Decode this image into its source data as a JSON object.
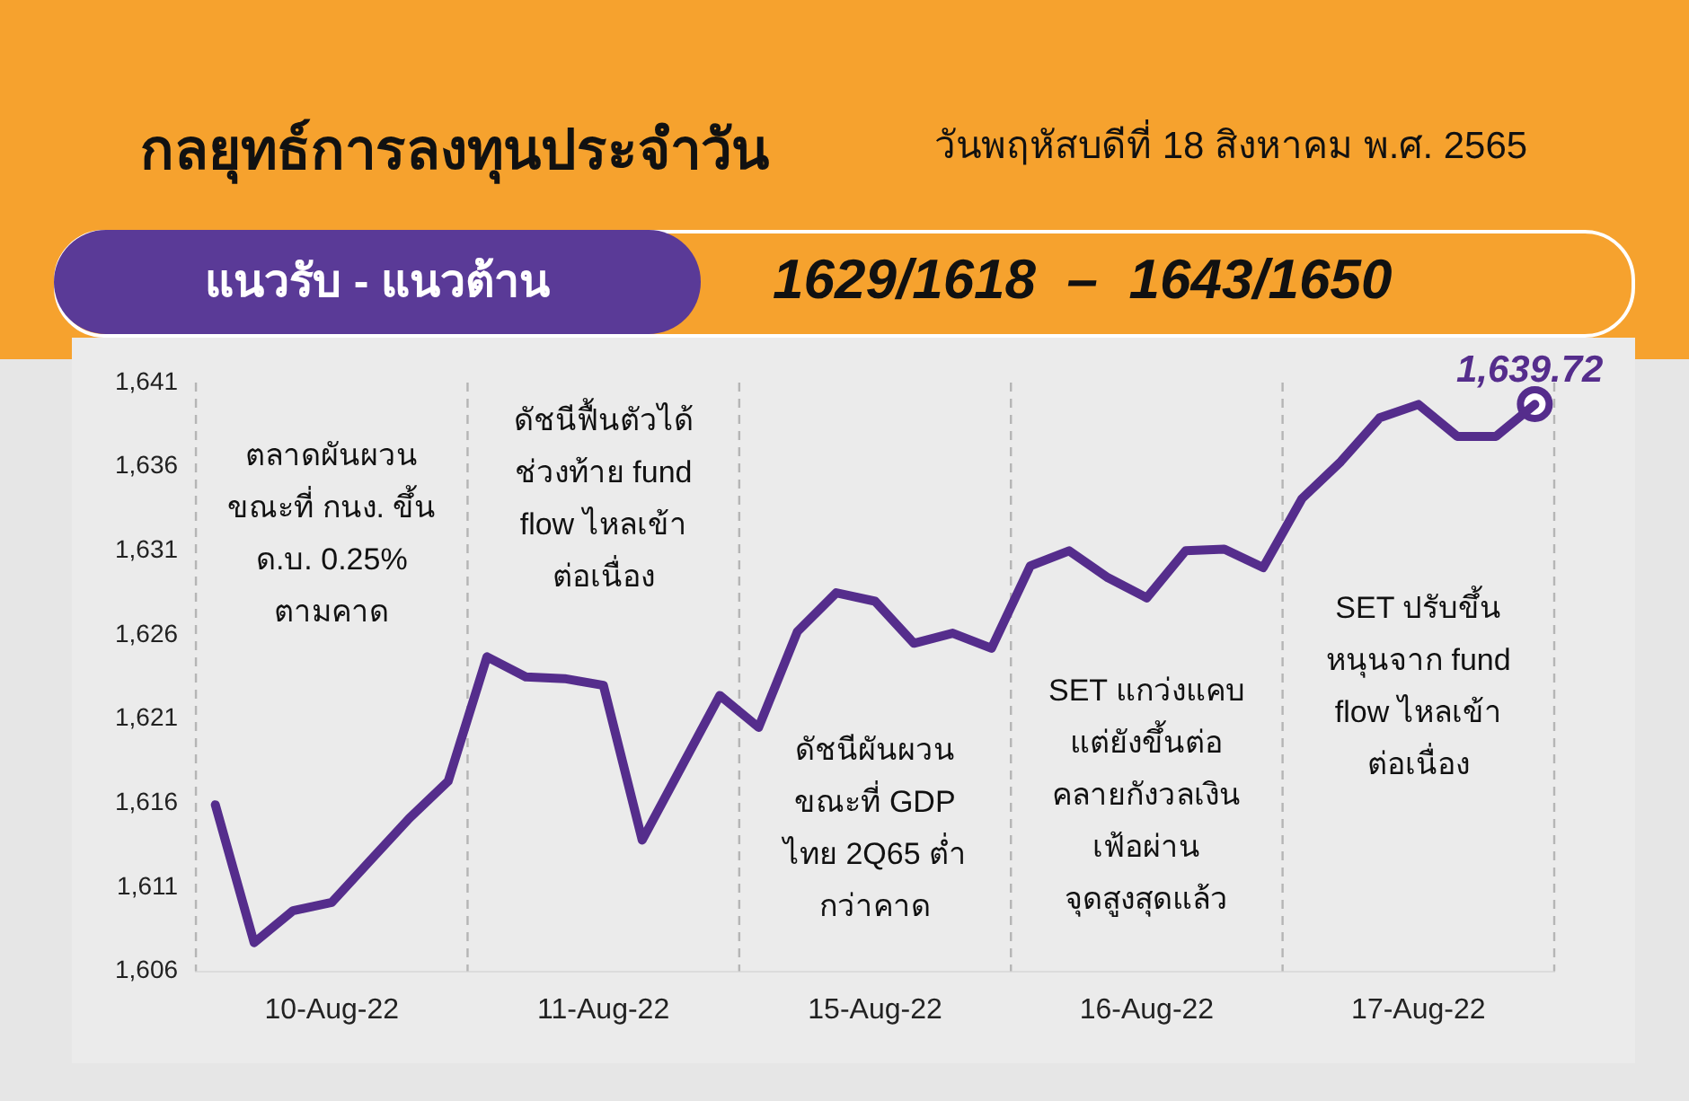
{
  "chart_data": {
    "type": "line",
    "title": "กลยุทธ์การลงทุนประจำวัน",
    "subtitle": "วันพฤหัสบดีที่ 18 สิงหาคม พ.ศ. 2565",
    "annotations": [
      "แนวรับ - แนวต้าน",
      "1629/1618  –  1643/1650",
      "ตลาดผันผวน\nขณะที่ กนง. ขึ้น\nด.บ. 0.25%\nตามคาด",
      "ดัชนีฟื้นตัวได้\nช่วงท้าย fund\nflow ไหลเข้า\nต่อเนื่อง",
      "ดัชนีผันผวน\nขณะที่ GDP\nไทย 2Q65 ต่ำ\nกว่าคาด",
      "SET แกว่งแคบ\nแต่ยังขึ้นต่อ\nคลายกังวลเงิน\nเฟ้อผ่าน\nจุดสูงสุดแล้ว",
      "SET ปรับขึ้น\nหนุนจาก fund\nflow ไหลเข้า\nต่อเนื่อง"
    ],
    "categories": [
      null,
      null,
      null,
      "10-Aug-22",
      null,
      null,
      null,
      null,
      null,
      null,
      "11-Aug-22",
      null,
      null,
      null,
      null,
      null,
      null,
      "15-Aug-22",
      null,
      null,
      null,
      null,
      null,
      null,
      "16-Aug-22",
      null,
      null,
      null,
      null,
      null,
      null,
      "17-Aug-22",
      null,
      null,
      null
    ],
    "ylim": [
      1606,
      1641
    ],
    "yticks": [
      {
        "value": 1606,
        "label": "1,606"
      },
      {
        "value": 1611,
        "label": "1,611"
      },
      {
        "value": 1616,
        "label": "1,616"
      },
      {
        "value": 1621,
        "label": "1,621"
      },
      {
        "value": 1626,
        "label": "1,626"
      },
      {
        "value": 1631,
        "label": "1,631"
      },
      {
        "value": 1636,
        "label": "1,636"
      },
      {
        "value": 1641,
        "label": "1,641"
      }
    ],
    "grid": "x",
    "legend": false,
    "series": [
      {
        "color": "#552d8c",
        "marker": "none",
        "line_style": "solid",
        "values": [
          1615.9,
          1607.7,
          1609.6,
          1610.1,
          1612.6,
          1615.1,
          1617.3,
          1624.7,
          1623.5,
          1623.4,
          1623.0,
          1613.8,
          1618.1,
          1622.4,
          1620.5,
          1626.2,
          1628.5,
          1628.0,
          1625.5,
          1626.1,
          1625.2,
          1630.1,
          1631.0,
          1629.4,
          1628.2,
          1631.0,
          1631.1,
          1630.0,
          1634.1,
          1636.3,
          1638.9,
          1639.7,
          1637.8,
          1637.8,
          1639.7
        ]
      },
      {
        "type": "scatter",
        "color": "#552d8c",
        "marker": "circle",
        "values": [
          null,
          null,
          null,
          null,
          null,
          null,
          null,
          null,
          null,
          null,
          null,
          null,
          null,
          null,
          null,
          null,
          null,
          null,
          null,
          null,
          null,
          null,
          null,
          null,
          null,
          null,
          null,
          null,
          null,
          null,
          null,
          null,
          null,
          null,
          1639.72
        ],
        "value_labels": [
          null,
          null,
          null,
          null,
          null,
          null,
          null,
          null,
          null,
          null,
          null,
          null,
          null,
          null,
          null,
          null,
          null,
          null,
          null,
          null,
          null,
          null,
          null,
          null,
          null,
          null,
          null,
          null,
          null,
          null,
          null,
          null,
          null,
          null,
          "1,639.72"
        ]
      }
    ]
  }
}
